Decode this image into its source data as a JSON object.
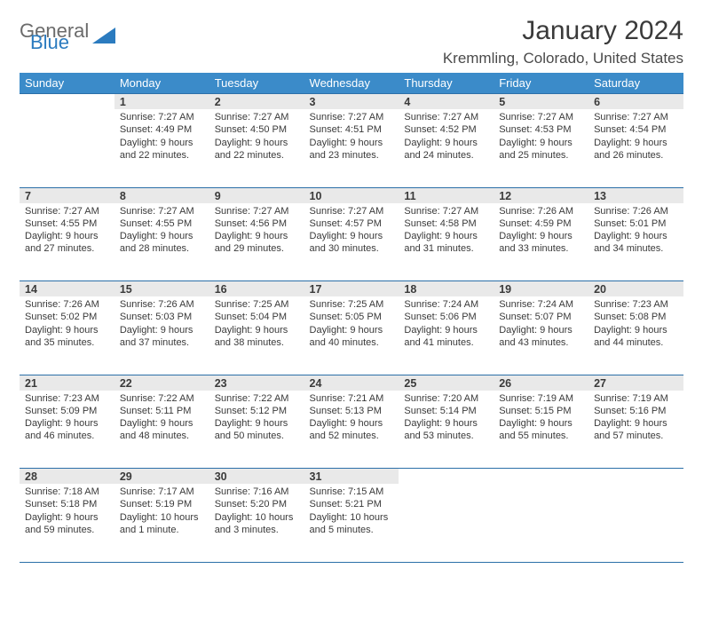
{
  "logo": {
    "general": "General",
    "blue": "Blue"
  },
  "title": "January 2024",
  "location": "Kremmling, Colorado, United States",
  "colors": {
    "header_bg": "#3b8bc9",
    "header_text": "#ffffff",
    "daynum_bg": "#e9e9e9",
    "rule": "#2b6fa8",
    "body_text": "#3a3a3a",
    "logo_gray": "#6b6b6b",
    "logo_blue": "#2b7bbf",
    "page_bg": "#ffffff"
  },
  "weekdays": [
    "Sunday",
    "Monday",
    "Tuesday",
    "Wednesday",
    "Thursday",
    "Friday",
    "Saturday"
  ],
  "weeks": [
    {
      "nums": [
        "",
        "1",
        "2",
        "3",
        "4",
        "5",
        "6"
      ],
      "cells": [
        null,
        {
          "sunrise": "Sunrise: 7:27 AM",
          "sunset": "Sunset: 4:49 PM",
          "day1": "Daylight: 9 hours",
          "day2": "and 22 minutes."
        },
        {
          "sunrise": "Sunrise: 7:27 AM",
          "sunset": "Sunset: 4:50 PM",
          "day1": "Daylight: 9 hours",
          "day2": "and 22 minutes."
        },
        {
          "sunrise": "Sunrise: 7:27 AM",
          "sunset": "Sunset: 4:51 PM",
          "day1": "Daylight: 9 hours",
          "day2": "and 23 minutes."
        },
        {
          "sunrise": "Sunrise: 7:27 AM",
          "sunset": "Sunset: 4:52 PM",
          "day1": "Daylight: 9 hours",
          "day2": "and 24 minutes."
        },
        {
          "sunrise": "Sunrise: 7:27 AM",
          "sunset": "Sunset: 4:53 PM",
          "day1": "Daylight: 9 hours",
          "day2": "and 25 minutes."
        },
        {
          "sunrise": "Sunrise: 7:27 AM",
          "sunset": "Sunset: 4:54 PM",
          "day1": "Daylight: 9 hours",
          "day2": "and 26 minutes."
        }
      ]
    },
    {
      "nums": [
        "7",
        "8",
        "9",
        "10",
        "11",
        "12",
        "13"
      ],
      "cells": [
        {
          "sunrise": "Sunrise: 7:27 AM",
          "sunset": "Sunset: 4:55 PM",
          "day1": "Daylight: 9 hours",
          "day2": "and 27 minutes."
        },
        {
          "sunrise": "Sunrise: 7:27 AM",
          "sunset": "Sunset: 4:55 PM",
          "day1": "Daylight: 9 hours",
          "day2": "and 28 minutes."
        },
        {
          "sunrise": "Sunrise: 7:27 AM",
          "sunset": "Sunset: 4:56 PM",
          "day1": "Daylight: 9 hours",
          "day2": "and 29 minutes."
        },
        {
          "sunrise": "Sunrise: 7:27 AM",
          "sunset": "Sunset: 4:57 PM",
          "day1": "Daylight: 9 hours",
          "day2": "and 30 minutes."
        },
        {
          "sunrise": "Sunrise: 7:27 AM",
          "sunset": "Sunset: 4:58 PM",
          "day1": "Daylight: 9 hours",
          "day2": "and 31 minutes."
        },
        {
          "sunrise": "Sunrise: 7:26 AM",
          "sunset": "Sunset: 4:59 PM",
          "day1": "Daylight: 9 hours",
          "day2": "and 33 minutes."
        },
        {
          "sunrise": "Sunrise: 7:26 AM",
          "sunset": "Sunset: 5:01 PM",
          "day1": "Daylight: 9 hours",
          "day2": "and 34 minutes."
        }
      ]
    },
    {
      "nums": [
        "14",
        "15",
        "16",
        "17",
        "18",
        "19",
        "20"
      ],
      "cells": [
        {
          "sunrise": "Sunrise: 7:26 AM",
          "sunset": "Sunset: 5:02 PM",
          "day1": "Daylight: 9 hours",
          "day2": "and 35 minutes."
        },
        {
          "sunrise": "Sunrise: 7:26 AM",
          "sunset": "Sunset: 5:03 PM",
          "day1": "Daylight: 9 hours",
          "day2": "and 37 minutes."
        },
        {
          "sunrise": "Sunrise: 7:25 AM",
          "sunset": "Sunset: 5:04 PM",
          "day1": "Daylight: 9 hours",
          "day2": "and 38 minutes."
        },
        {
          "sunrise": "Sunrise: 7:25 AM",
          "sunset": "Sunset: 5:05 PM",
          "day1": "Daylight: 9 hours",
          "day2": "and 40 minutes."
        },
        {
          "sunrise": "Sunrise: 7:24 AM",
          "sunset": "Sunset: 5:06 PM",
          "day1": "Daylight: 9 hours",
          "day2": "and 41 minutes."
        },
        {
          "sunrise": "Sunrise: 7:24 AM",
          "sunset": "Sunset: 5:07 PM",
          "day1": "Daylight: 9 hours",
          "day2": "and 43 minutes."
        },
        {
          "sunrise": "Sunrise: 7:23 AM",
          "sunset": "Sunset: 5:08 PM",
          "day1": "Daylight: 9 hours",
          "day2": "and 44 minutes."
        }
      ]
    },
    {
      "nums": [
        "21",
        "22",
        "23",
        "24",
        "25",
        "26",
        "27"
      ],
      "cells": [
        {
          "sunrise": "Sunrise: 7:23 AM",
          "sunset": "Sunset: 5:09 PM",
          "day1": "Daylight: 9 hours",
          "day2": "and 46 minutes."
        },
        {
          "sunrise": "Sunrise: 7:22 AM",
          "sunset": "Sunset: 5:11 PM",
          "day1": "Daylight: 9 hours",
          "day2": "and 48 minutes."
        },
        {
          "sunrise": "Sunrise: 7:22 AM",
          "sunset": "Sunset: 5:12 PM",
          "day1": "Daylight: 9 hours",
          "day2": "and 50 minutes."
        },
        {
          "sunrise": "Sunrise: 7:21 AM",
          "sunset": "Sunset: 5:13 PM",
          "day1": "Daylight: 9 hours",
          "day2": "and 52 minutes."
        },
        {
          "sunrise": "Sunrise: 7:20 AM",
          "sunset": "Sunset: 5:14 PM",
          "day1": "Daylight: 9 hours",
          "day2": "and 53 minutes."
        },
        {
          "sunrise": "Sunrise: 7:19 AM",
          "sunset": "Sunset: 5:15 PM",
          "day1": "Daylight: 9 hours",
          "day2": "and 55 minutes."
        },
        {
          "sunrise": "Sunrise: 7:19 AM",
          "sunset": "Sunset: 5:16 PM",
          "day1": "Daylight: 9 hours",
          "day2": "and 57 minutes."
        }
      ]
    },
    {
      "nums": [
        "28",
        "29",
        "30",
        "31",
        "",
        "",
        ""
      ],
      "cells": [
        {
          "sunrise": "Sunrise: 7:18 AM",
          "sunset": "Sunset: 5:18 PM",
          "day1": "Daylight: 9 hours",
          "day2": "and 59 minutes."
        },
        {
          "sunrise": "Sunrise: 7:17 AM",
          "sunset": "Sunset: 5:19 PM",
          "day1": "Daylight: 10 hours",
          "day2": "and 1 minute."
        },
        {
          "sunrise": "Sunrise: 7:16 AM",
          "sunset": "Sunset: 5:20 PM",
          "day1": "Daylight: 10 hours",
          "day2": "and 3 minutes."
        },
        {
          "sunrise": "Sunrise: 7:15 AM",
          "sunset": "Sunset: 5:21 PM",
          "day1": "Daylight: 10 hours",
          "day2": "and 5 minutes."
        },
        null,
        null,
        null
      ]
    }
  ]
}
